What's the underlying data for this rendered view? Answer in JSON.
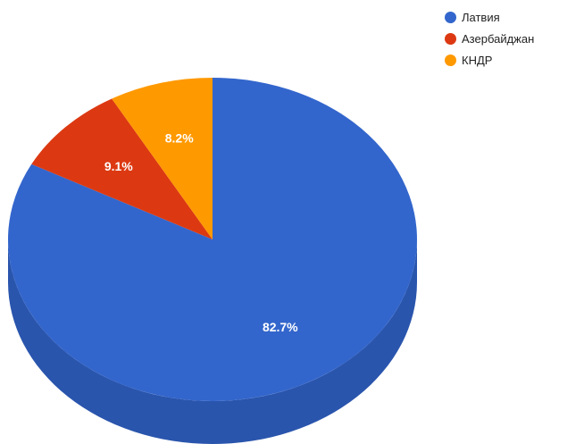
{
  "chart_data": {
    "type": "pie",
    "title": "",
    "labels": [
      "Латвия",
      "Азербайджан",
      "КНДР"
    ],
    "values": [
      82.7,
      9.1,
      8.2
    ],
    "value_labels": [
      "82.7%",
      "9.1%",
      "8.2%"
    ],
    "colors": [
      "#3366cc",
      "#dc3912",
      "#ff9900"
    ],
    "side_colors": [
      "#2a55ad",
      "#b3300f",
      "#d98100"
    ],
    "legend_position": "right",
    "is3d": true
  }
}
